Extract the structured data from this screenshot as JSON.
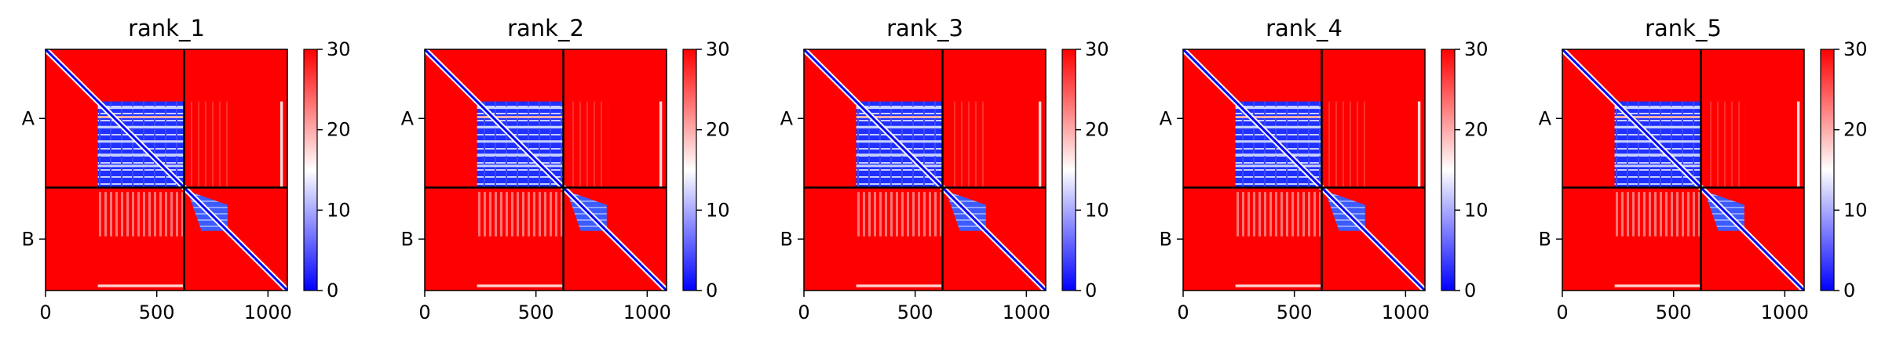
{
  "chart_data": {
    "type": "heatmap",
    "x_range": [
      0,
      1087
    ],
    "boundary": 623,
    "chain_labels": [
      "A",
      "B"
    ],
    "x_ticks": [
      0,
      500,
      1000
    ],
    "colorbar": {
      "range": [
        0,
        30
      ],
      "ticks": [
        "0",
        "10",
        "20",
        "30"
      ],
      "colors": [
        "#0000ff",
        "#ffffff",
        "#ff0000"
      ]
    },
    "panels": [
      {
        "title": "rank_1"
      },
      {
        "title": "rank_2"
      },
      {
        "title": "rank_3"
      },
      {
        "title": "rank_4"
      },
      {
        "title": "rank_5"
      }
    ]
  }
}
